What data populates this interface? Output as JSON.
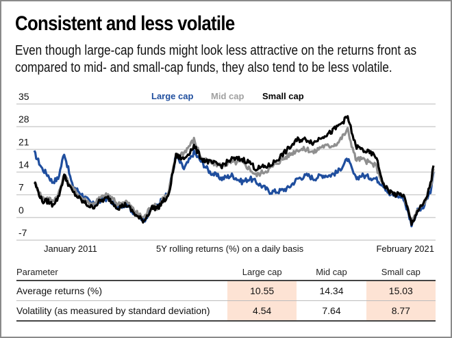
{
  "header": {
    "title": "Consistent and less volatile",
    "subtitle": "Even though large-cap funds might look less attractive on the returns front as compared to mid- and small-cap funds, they also tend to be less volatile."
  },
  "chart_data": {
    "type": "line",
    "title": "Consistent and less volatile",
    "xlabel": "5Y rolling returns (%) on a daily basis",
    "ylabel": "",
    "x_start_label": "January 2011",
    "x_end_label": "February 2021",
    "x_range_years": [
      0,
      10
    ],
    "ylim": [
      -7,
      35
    ],
    "yticks": [
      35,
      28,
      21,
      14,
      7,
      0,
      -7
    ],
    "grid": true,
    "legend_position": "top-center",
    "series": [
      {
        "name": "Large cap",
        "color": "#1f4e9e",
        "x": [
          0,
          0.2,
          0.35,
          0.45,
          0.6,
          0.75,
          0.95,
          1.2,
          1.45,
          1.65,
          1.85,
          2.1,
          2.3,
          2.45,
          2.6,
          2.75,
          2.95,
          3.1,
          3.22,
          3.35,
          3.55,
          3.75,
          4.0,
          4.2,
          4.4,
          4.7,
          4.95,
          5.2,
          5.4,
          5.55,
          5.9,
          6.1,
          6.35,
          6.6,
          6.85,
          7.0,
          7.2,
          7.4,
          7.6,
          7.85,
          8.05,
          8.2,
          8.55,
          8.75,
          8.9,
          9.05,
          9.25,
          9.45,
          9.6,
          9.75,
          9.85,
          9.95,
          10.0
        ],
        "values": [
          20,
          15,
          13,
          11,
          12,
          20,
          10,
          7,
          4,
          5,
          6,
          3,
          4,
          2,
          1,
          -1,
          3,
          4,
          6,
          7,
          19,
          15,
          20,
          17,
          14,
          12,
          13,
          11,
          12,
          11,
          8,
          8,
          9,
          12,
          13,
          12,
          13,
          13,
          14,
          18,
          12,
          13,
          12,
          10,
          7,
          7,
          6,
          -2,
          2,
          3,
          6,
          9,
          14
        ]
      },
      {
        "name": "Mid cap",
        "color": "#8f8f8f",
        "x": [
          0,
          0.2,
          0.35,
          0.45,
          0.6,
          0.75,
          0.95,
          1.2,
          1.45,
          1.65,
          1.85,
          2.1,
          2.3,
          2.45,
          2.6,
          2.75,
          2.95,
          3.1,
          3.22,
          3.35,
          3.55,
          3.75,
          4.0,
          4.2,
          4.4,
          4.7,
          4.95,
          5.2,
          5.4,
          5.55,
          5.9,
          6.1,
          6.35,
          6.6,
          6.85,
          7.0,
          7.2,
          7.4,
          7.6,
          7.85,
          8.05,
          8.2,
          8.55,
          8.75,
          8.9,
          9.05,
          9.25,
          9.45,
          9.6,
          9.75,
          9.85,
          9.95,
          10.0
        ],
        "values": [
          11,
          6,
          6,
          5,
          7,
          13,
          9,
          6,
          4,
          6,
          7,
          4,
          5,
          3,
          1,
          0,
          4,
          3,
          6,
          7,
          19,
          20,
          24,
          18,
          17,
          16,
          17,
          17,
          15,
          13,
          15,
          17,
          19,
          21,
          21,
          20,
          22,
          22,
          23,
          27,
          18,
          18,
          16,
          10,
          8,
          7,
          7,
          -1,
          2,
          4,
          7,
          11,
          15
        ]
      },
      {
        "name": "Small cap",
        "color": "#000000",
        "x": [
          0,
          0.2,
          0.35,
          0.45,
          0.6,
          0.75,
          0.95,
          1.2,
          1.45,
          1.65,
          1.85,
          2.1,
          2.3,
          2.45,
          2.6,
          2.75,
          2.95,
          3.1,
          3.22,
          3.35,
          3.55,
          3.75,
          4.0,
          4.2,
          4.4,
          4.7,
          4.95,
          5.2,
          5.4,
          5.55,
          5.9,
          6.1,
          6.35,
          6.6,
          6.85,
          7.0,
          7.2,
          7.4,
          7.6,
          7.85,
          8.05,
          8.2,
          8.55,
          8.75,
          8.9,
          9.05,
          9.25,
          9.45,
          9.6,
          9.75,
          9.85,
          9.95,
          10.0
        ],
        "values": [
          11,
          5,
          5,
          4,
          6,
          13,
          8,
          5,
          3,
          5,
          6,
          3,
          4,
          2,
          0,
          -1,
          3,
          3,
          5,
          6,
          19,
          18,
          22,
          18,
          17,
          16,
          18,
          18,
          17,
          15,
          16,
          18,
          21,
          24,
          24,
          23,
          25,
          26,
          28,
          31,
          22,
          21,
          19,
          10,
          8,
          7,
          7,
          -2,
          2,
          4,
          7,
          12,
          16
        ]
      }
    ]
  },
  "table": {
    "headers": [
      "Parameter",
      "Large cap",
      "Mid cap",
      "Small cap"
    ],
    "rows": [
      {
        "label": "Average returns (%)",
        "values": [
          "10.55",
          "14.34",
          "15.03"
        ]
      },
      {
        "label": "Volatility (as measured by standard deviation)",
        "values": [
          "4.54",
          "7.64",
          "8.77"
        ]
      }
    ],
    "highlight_color": "#fde3d4"
  }
}
